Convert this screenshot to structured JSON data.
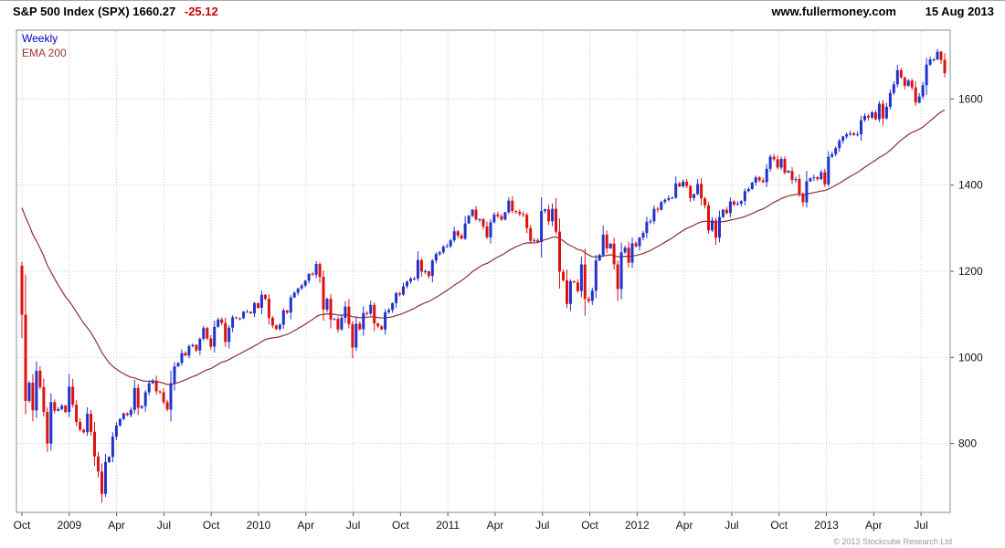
{
  "header": {
    "title": "S&P 500 Index (SPX) 1660.27",
    "change": "-25.12",
    "site": "www.fullermoney.com",
    "date": "15 Aug 2013"
  },
  "legend": {
    "timeframe": "Weekly",
    "overlay": "EMA 200"
  },
  "footer": {
    "copyright": "© 2013 Stockcube Research Ltd"
  },
  "colors": {
    "up": "#2233cc",
    "down": "#dd1111",
    "ema": "#8b3030",
    "grid": "#c9c9c9",
    "border": "#8c8c8c",
    "axis_text": "#111111",
    "change": "#cc0000"
  },
  "chart_data": {
    "type": "candlestick",
    "title": "S&P 500 Index (SPX)",
    "timeframe": "Weekly",
    "overlay": "EMA 200",
    "last_price": 1660.27,
    "last_change": -25.12,
    "ylim": [
      640,
      1760
    ],
    "y_ticks": [
      800,
      1000,
      1200,
      1400,
      1600
    ],
    "x_ticks": [
      {
        "label": "Oct",
        "m": 0
      },
      {
        "label": "2009",
        "m": 3
      },
      {
        "label": "Apr",
        "m": 6
      },
      {
        "label": "Jul",
        "m": 9
      },
      {
        "label": "Oct",
        "m": 12
      },
      {
        "label": "2010",
        "m": 15
      },
      {
        "label": "Apr",
        "m": 18
      },
      {
        "label": "Jul",
        "m": 21
      },
      {
        "label": "Oct",
        "m": 24
      },
      {
        "label": "2011",
        "m": 27
      },
      {
        "label": "Apr",
        "m": 30
      },
      {
        "label": "Jul",
        "m": 33
      },
      {
        "label": "Oct",
        "m": 36
      },
      {
        "label": "2012",
        "m": 39
      },
      {
        "label": "Apr",
        "m": 42
      },
      {
        "label": "Jul",
        "m": 45
      },
      {
        "label": "Oct",
        "m": 48
      },
      {
        "label": "2013",
        "m": 51
      },
      {
        "label": "Apr",
        "m": 54
      },
      {
        "label": "Jul",
        "m": 57
      }
    ],
    "span_months": 58.5,
    "prev_close": 1213,
    "ema_period": 40,
    "ema_seed": 1360,
    "closes": [
      1099,
      899,
      941,
      877,
      969,
      931,
      873,
      800,
      896,
      876,
      880,
      888,
      873,
      932,
      890,
      850,
      832,
      826,
      869,
      827,
      770,
      735,
      683,
      757,
      769,
      816,
      842,
      857,
      870,
      866,
      878,
      929,
      883,
      887,
      919,
      940,
      946,
      921,
      919,
      896,
      879,
      940,
      979,
      987,
      1010,
      1004,
      1026,
      1029,
      1016,
      1043,
      1068,
      1044,
      1025,
      1071,
      1088,
      1080,
      1036,
      1069,
      1093,
      1091,
      1091,
      1106,
      1106,
      1102,
      1126,
      1115,
      1145,
      1136,
      1092,
      1074,
      1066,
      1076,
      1109,
      1104,
      1139,
      1150,
      1160,
      1167,
      1178,
      1194,
      1192,
      1217,
      1187,
      1111,
      1136,
      1088,
      1089,
      1065,
      1092,
      1118,
      1077,
      1023,
      1078,
      1065,
      1103,
      1102,
      1122,
      1079,
      1072,
      1065,
      1105,
      1110,
      1126,
      1149,
      1146,
      1165,
      1176,
      1183,
      1183,
      1226,
      1199,
      1200,
      1189,
      1225,
      1240,
      1244,
      1257,
      1258,
      1272,
      1293,
      1283,
      1276,
      1311,
      1329,
      1343,
      1320,
      1321,
      1304,
      1279,
      1314,
      1332,
      1328,
      1320,
      1337,
      1364,
      1340,
      1338,
      1333,
      1331,
      1300,
      1271,
      1272,
      1268,
      1340,
      1344,
      1316,
      1345,
      1292,
      1199,
      1179,
      1124,
      1177,
      1174,
      1154,
      1216,
      1136,
      1131,
      1155,
      1225,
      1238,
      1285,
      1253,
      1264,
      1216,
      1159,
      1244,
      1255,
      1220,
      1265,
      1258,
      1278,
      1289,
      1315,
      1316,
      1345,
      1343,
      1361,
      1366,
      1370,
      1371,
      1404,
      1397,
      1408,
      1398,
      1370,
      1379,
      1403,
      1369,
      1353,
      1295,
      1318,
      1278,
      1326,
      1343,
      1335,
      1362,
      1355,
      1357,
      1363,
      1386,
      1391,
      1406,
      1418,
      1411,
      1407,
      1438,
      1466,
      1460,
      1441,
      1461,
      1429,
      1433,
      1412,
      1414,
      1380,
      1360,
      1409,
      1416,
      1418,
      1414,
      1430,
      1402,
      1466,
      1472,
      1486,
      1503,
      1513,
      1518,
      1520,
      1516,
      1518,
      1551,
      1561,
      1557,
      1569,
      1553,
      1589,
      1555,
      1582,
      1614,
      1634,
      1667,
      1650,
      1631,
      1643,
      1627,
      1592,
      1606,
      1632,
      1680,
      1692,
      1692,
      1710,
      1691,
      1660
    ]
  }
}
